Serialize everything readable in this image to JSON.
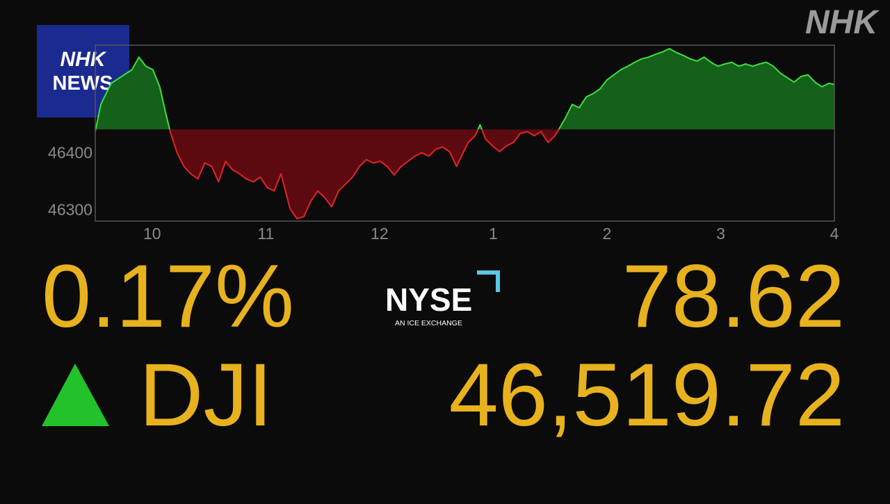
{
  "header": {
    "logo_top": "NHK",
    "logo_bottom": "NEWS",
    "watermark": "NHK"
  },
  "quote": {
    "change_percent": "0.17%",
    "exchange": "NYSE",
    "exchange_tagline": "AN ICE EXCHANGE",
    "change": "78.62",
    "symbol": "DJI",
    "price": "46,519.72"
  },
  "chart_data": {
    "type": "line",
    "x": [
      9.5,
      9.549,
      9.64,
      9.732,
      9.823,
      9.884,
      9.945,
      10.006,
      10.067,
      10.116,
      10.159,
      10.22,
      10.28,
      10.341,
      10.402,
      10.463,
      10.524,
      10.585,
      10.646,
      10.707,
      10.768,
      10.829,
      10.89,
      10.951,
      11.012,
      11.073,
      11.134,
      11.165,
      11.213,
      11.274,
      11.335,
      11.396,
      11.457,
      11.518,
      11.579,
      11.64,
      11.701,
      11.762,
      11.823,
      11.884,
      11.945,
      12.006,
      12.067,
      12.128,
      12.189,
      12.25,
      12.311,
      12.372,
      12.433,
      12.494,
      12.555,
      12.616,
      12.677,
      12.72,
      12.78,
      12.841,
      12.884,
      12.933,
      12.994,
      13.055,
      13.116,
      13.177,
      13.238,
      13.299,
      13.36,
      13.421,
      13.482,
      13.543,
      13.591,
      13.634,
      13.695,
      13.756,
      13.817,
      13.878,
      13.939,
      14.0,
      14.061,
      14.122,
      14.183,
      14.244,
      14.305,
      14.366,
      14.427,
      14.488,
      14.549,
      14.61,
      14.671,
      14.732,
      14.793,
      14.854,
      14.915,
      14.976,
      15.037,
      15.098,
      15.159,
      15.22,
      15.28,
      15.341,
      15.402,
      15.463,
      15.524,
      15.585,
      15.646,
      15.707,
      15.768,
      15.829,
      15.89,
      15.951,
      16.0
    ],
    "values": [
      46437,
      46485,
      46522,
      46534,
      46546,
      46568,
      46552,
      46546,
      46516,
      46473,
      46437,
      46400,
      46376,
      46363,
      46354,
      46382,
      46376,
      46349,
      46385,
      46370,
      46363,
      46354,
      46349,
      46357,
      46339,
      46333,
      46363,
      46339,
      46302,
      46284,
      46288,
      46315,
      46333,
      46321,
      46305,
      46333,
      46345,
      46357,
      46376,
      46388,
      46382,
      46385,
      46376,
      46361,
      46376,
      46385,
      46394,
      46400,
      46394,
      46406,
      46410,
      46402,
      46376,
      46394,
      46418,
      46430,
      46449,
      46424,
      46412,
      46402,
      46412,
      46418,
      46434,
      46437,
      46430,
      46437,
      46418,
      46430,
      46446,
      46461,
      46485,
      46479,
      46498,
      46504,
      46512,
      46528,
      46537,
      46546,
      46552,
      46559,
      46565,
      46568,
      46573,
      46577,
      46583,
      46576,
      46571,
      46565,
      46561,
      46568,
      46559,
      46552,
      46556,
      46559,
      46552,
      46556,
      46552,
      46556,
      46559,
      46552,
      46540,
      46532,
      46524,
      46534,
      46537,
      46524,
      46516,
      46522,
      46520
    ],
    "baseline": 46441,
    "colors": {
      "up": "#3be03b",
      "down": "#e0242a",
      "up_fill": "#15601a",
      "down_fill": "#5c0a10"
    },
    "xlim": [
      9.5,
      16
    ],
    "xticks": [
      10,
      11,
      12,
      {
        "value": 13,
        "label": "1"
      },
      {
        "value": 14,
        "label": "2"
      },
      {
        "value": 15,
        "label": "3"
      },
      {
        "value": 16,
        "label": "4"
      }
    ],
    "ylim": [
      46280,
      46589
    ],
    "yticks": [
      46300,
      46400
    ]
  }
}
